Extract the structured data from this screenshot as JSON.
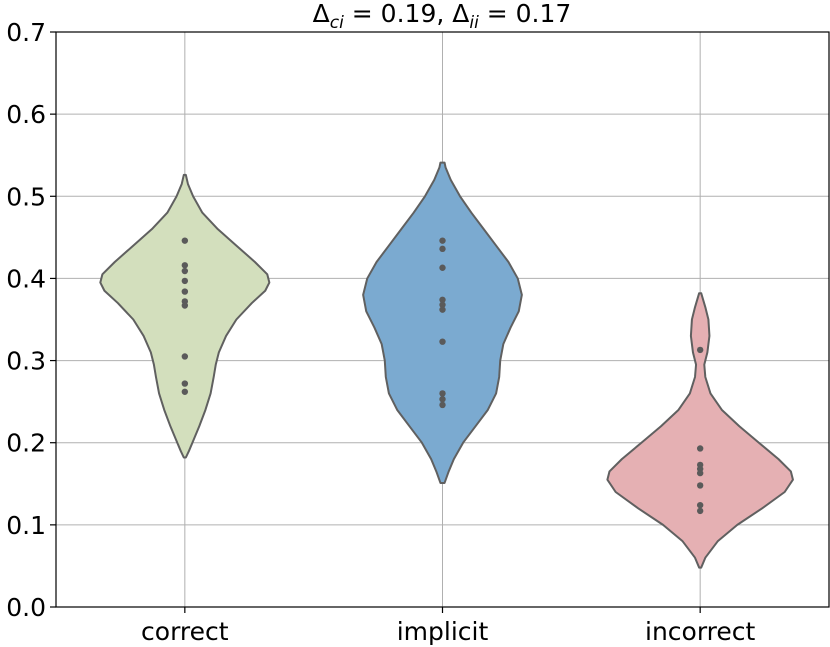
{
  "chart_data": {
    "type": "violin",
    "title_parts": {
      "delta": "Δ",
      "sub1": "ci",
      "eq1": " = 0.19, ",
      "sub2": "ii",
      "eq2": " = 0.17"
    },
    "xlabel": "",
    "ylabel": "",
    "ylim": [
      0.0,
      0.7
    ],
    "yticks": [
      "0.0",
      "0.1",
      "0.2",
      "0.3",
      "0.4",
      "0.5",
      "0.6",
      "0.7"
    ],
    "grid": true,
    "categories": [
      "correct",
      "implicit",
      "incorrect"
    ],
    "colors": [
      "#d3dfbd",
      "#7baad0",
      "#e5b0b3"
    ],
    "edge_color": "#606060",
    "point_color": "#5a5a5a",
    "series": [
      {
        "name": "correct",
        "points": [
          0.446,
          0.416,
          0.409,
          0.397,
          0.384,
          0.372,
          0.367,
          0.305,
          0.272,
          0.262
        ],
        "range": [
          0.182,
          0.526
        ],
        "density": [
          [
            0.182,
            0.01
          ],
          [
            0.19,
            0.04
          ],
          [
            0.205,
            0.09
          ],
          [
            0.22,
            0.14
          ],
          [
            0.24,
            0.2
          ],
          [
            0.26,
            0.25
          ],
          [
            0.28,
            0.28
          ],
          [
            0.295,
            0.3
          ],
          [
            0.31,
            0.33
          ],
          [
            0.33,
            0.4
          ],
          [
            0.35,
            0.5
          ],
          [
            0.37,
            0.65
          ],
          [
            0.385,
            0.78
          ],
          [
            0.395,
            0.82
          ],
          [
            0.405,
            0.8
          ],
          [
            0.42,
            0.68
          ],
          [
            0.44,
            0.5
          ],
          [
            0.46,
            0.32
          ],
          [
            0.48,
            0.17
          ],
          [
            0.5,
            0.08
          ],
          [
            0.515,
            0.03
          ],
          [
            0.526,
            0.01
          ]
        ]
      },
      {
        "name": "implicit",
        "points": [
          0.446,
          0.436,
          0.413,
          0.374,
          0.368,
          0.362,
          0.323,
          0.26,
          0.253,
          0.246
        ],
        "range": [
          0.151,
          0.541
        ],
        "density": [
          [
            0.151,
            0.02
          ],
          [
            0.165,
            0.06
          ],
          [
            0.18,
            0.11
          ],
          [
            0.2,
            0.2
          ],
          [
            0.22,
            0.32
          ],
          [
            0.24,
            0.44
          ],
          [
            0.26,
            0.52
          ],
          [
            0.28,
            0.55
          ],
          [
            0.3,
            0.56
          ],
          [
            0.32,
            0.59
          ],
          [
            0.34,
            0.66
          ],
          [
            0.36,
            0.74
          ],
          [
            0.38,
            0.77
          ],
          [
            0.4,
            0.73
          ],
          [
            0.42,
            0.64
          ],
          [
            0.44,
            0.52
          ],
          [
            0.46,
            0.4
          ],
          [
            0.48,
            0.28
          ],
          [
            0.5,
            0.17
          ],
          [
            0.52,
            0.08
          ],
          [
            0.535,
            0.03
          ],
          [
            0.541,
            0.02
          ]
        ]
      },
      {
        "name": "incorrect",
        "points": [
          0.313,
          0.193,
          0.173,
          0.168,
          0.163,
          0.148,
          0.124,
          0.117
        ],
        "range": [
          0.048,
          0.382
        ],
        "density": [
          [
            0.048,
            0.01
          ],
          [
            0.06,
            0.05
          ],
          [
            0.08,
            0.17
          ],
          [
            0.1,
            0.36
          ],
          [
            0.12,
            0.6
          ],
          [
            0.14,
            0.82
          ],
          [
            0.155,
            0.9
          ],
          [
            0.165,
            0.88
          ],
          [
            0.18,
            0.76
          ],
          [
            0.2,
            0.57
          ],
          [
            0.22,
            0.38
          ],
          [
            0.24,
            0.21
          ],
          [
            0.26,
            0.1
          ],
          [
            0.28,
            0.05
          ],
          [
            0.295,
            0.04
          ],
          [
            0.31,
            0.07
          ],
          [
            0.33,
            0.09
          ],
          [
            0.35,
            0.08
          ],
          [
            0.365,
            0.05
          ],
          [
            0.382,
            0.01
          ]
        ]
      }
    ]
  }
}
